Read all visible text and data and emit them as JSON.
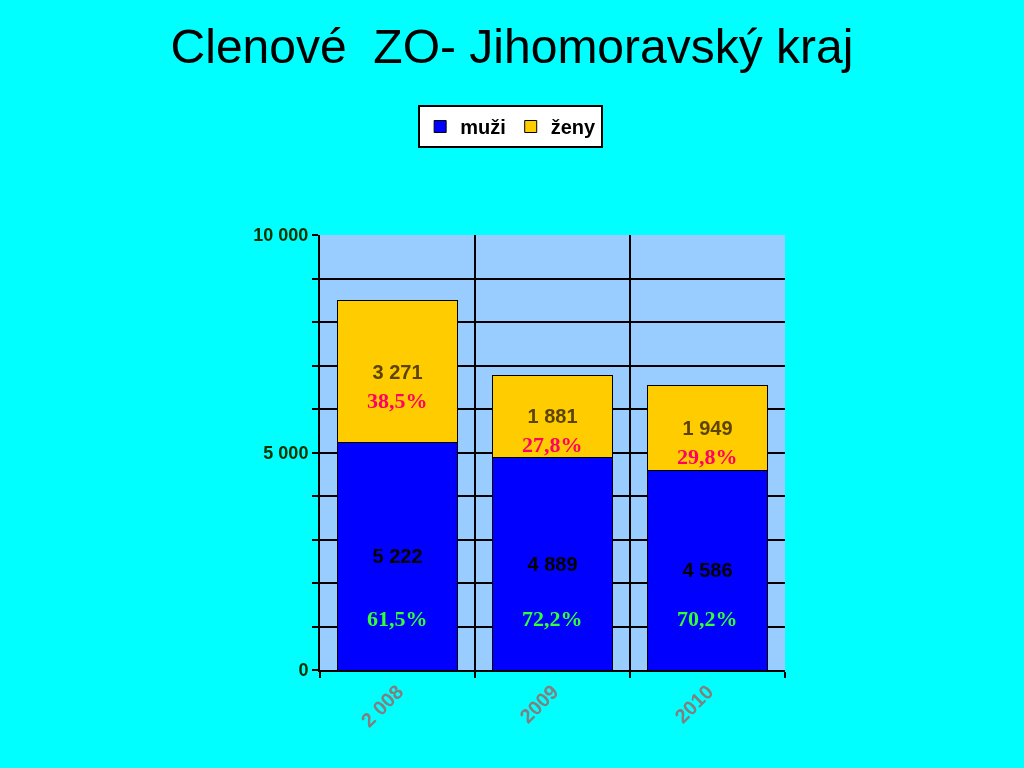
{
  "chart_data": {
    "type": "bar",
    "title": "Clenové  ZO- Jihomoravský kraj",
    "categories": [
      "2 008",
      "2009",
      "2010"
    ],
    "stacked": true,
    "series": [
      {
        "name": "muži",
        "color": "#0000ff",
        "values": [
          5222,
          4889,
          4586
        ],
        "value_labels": [
          "5 222",
          "4 889",
          "4 586"
        ]
      },
      {
        "name": "ženy",
        "color": "#ffcc00",
        "values": [
          3271,
          1881,
          1949
        ],
        "value_labels": [
          "3 271",
          "1 881",
          "1 949"
        ]
      }
    ],
    "ylim": [
      0,
      10000
    ],
    "yticks": [
      0,
      {
        "value": 1000,
        "label": null
      },
      {
        "value": 2000,
        "label": null
      },
      {
        "value": 3000,
        "label": null
      },
      {
        "value": 4000,
        "label": null
      },
      {
        "value": 5000,
        "label": "5 000"
      },
      {
        "value": 6000,
        "label": null
      },
      {
        "value": 7000,
        "label": null
      },
      {
        "value": 8000,
        "label": null
      },
      {
        "value": 9000,
        "label": null
      },
      {
        "value": 10000,
        "label": "10 000"
      }
    ],
    "grid": true,
    "legend": "top",
    "annotations": [
      {
        "text": "38,5%",
        "x": "2 008",
        "y": 5222
      },
      {
        "text": "27,8%",
        "x": "2009",
        "y": 4889
      },
      {
        "text": "29,8%",
        "x": "2010",
        "y": 4586
      },
      {
        "text": "61,5%",
        "x": "2 008",
        "y": 0
      },
      {
        "text": "72,2%",
        "x": "2009",
        "y": 0
      },
      {
        "text": "70,2%",
        "x": "2010",
        "y": 0
      }
    ]
  }
}
